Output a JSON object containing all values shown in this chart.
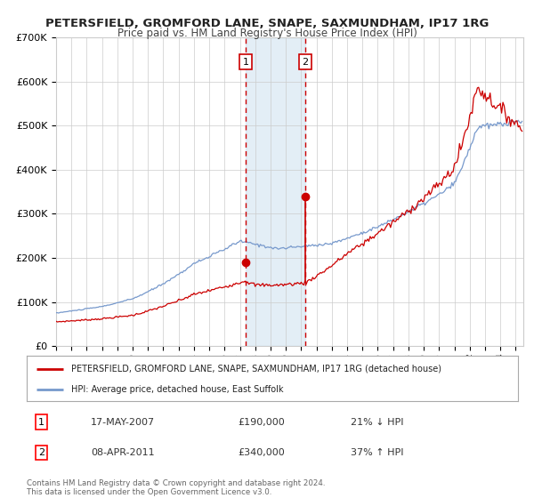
{
  "title": "PETERSFIELD, GROMFORD LANE, SNAPE, SAXMUNDHAM, IP17 1RG",
  "subtitle": "Price paid vs. HM Land Registry's House Price Index (HPI)",
  "title_fontsize": 9.5,
  "subtitle_fontsize": 8.5,
  "xlim_start": 1995.0,
  "xlim_end": 2025.5,
  "ylim": [
    0,
    700000
  ],
  "yticks": [
    0,
    100000,
    200000,
    300000,
    400000,
    500000,
    600000,
    700000
  ],
  "ytick_labels": [
    "£0",
    "£100K",
    "£200K",
    "£300K",
    "£400K",
    "£500K",
    "£600K",
    "£700K"
  ],
  "red_line_color": "#cc0000",
  "blue_line_color": "#7799cc",
  "transaction1_date": 2007.38,
  "transaction1_price": 190000,
  "transaction2_date": 2011.27,
  "transaction2_price": 340000,
  "shade_start": 2007.38,
  "shade_end": 2011.27,
  "legend_line1": "PETERSFIELD, GROMFORD LANE, SNAPE, SAXMUNDHAM, IP17 1RG (detached house)",
  "legend_line2": "HPI: Average price, detached house, East Suffolk",
  "table_row1": [
    "1",
    "17-MAY-2007",
    "£190,000",
    "21% ↓ HPI"
  ],
  "table_row2": [
    "2",
    "08-APR-2011",
    "£340,000",
    "37% ↑ HPI"
  ],
  "footnote": "Contains HM Land Registry data © Crown copyright and database right 2024.\nThis data is licensed under the Open Government Licence v3.0.",
  "background_color": "#ffffff",
  "grid_color": "#cccccc",
  "plot_bg_color": "#ffffff"
}
